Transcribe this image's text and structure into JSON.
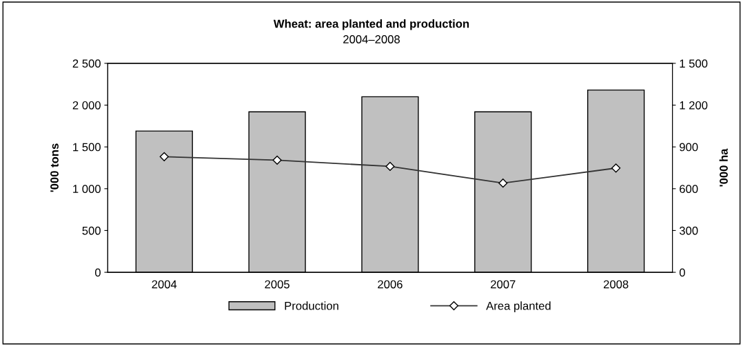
{
  "chart_data": {
    "type": "bar",
    "title": "Wheat: area planted and production",
    "subtitle": "2004–2008",
    "ylabel": "'000 tons",
    "y2label": "'000 ha",
    "categories": [
      "2004",
      "2005",
      "2006",
      "2007",
      "2008"
    ],
    "series": [
      {
        "name": "Production",
        "color": "#c0c0c0",
        "values": [
          1690,
          1920,
          2100,
          1920,
          2180
        ]
      },
      {
        "name": "Area planted",
        "type": "line",
        "axis": "y2",
        "color": "#333333",
        "marker": "diamond",
        "values": [
          830,
          805,
          760,
          640,
          748
        ]
      }
    ],
    "ylim": [
      0,
      2500
    ],
    "yticks": [
      0,
      {
        "value": 500,
        "label": "500"
      },
      {
        "value": 1000,
        "label": "1 000"
      },
      {
        "value": 1500,
        "label": "1 500"
      },
      {
        "value": 2000,
        "label": "2 000"
      },
      {
        "value": 2500,
        "label": "2 500"
      }
    ],
    "y2lim": [
      0,
      1500
    ],
    "y2ticks": [
      0,
      300,
      600,
      900,
      {
        "value": 1200,
        "label": "1 200"
      },
      {
        "value": 1500,
        "label": "1 500"
      }
    ],
    "grid": false,
    "legend": "bottom"
  }
}
